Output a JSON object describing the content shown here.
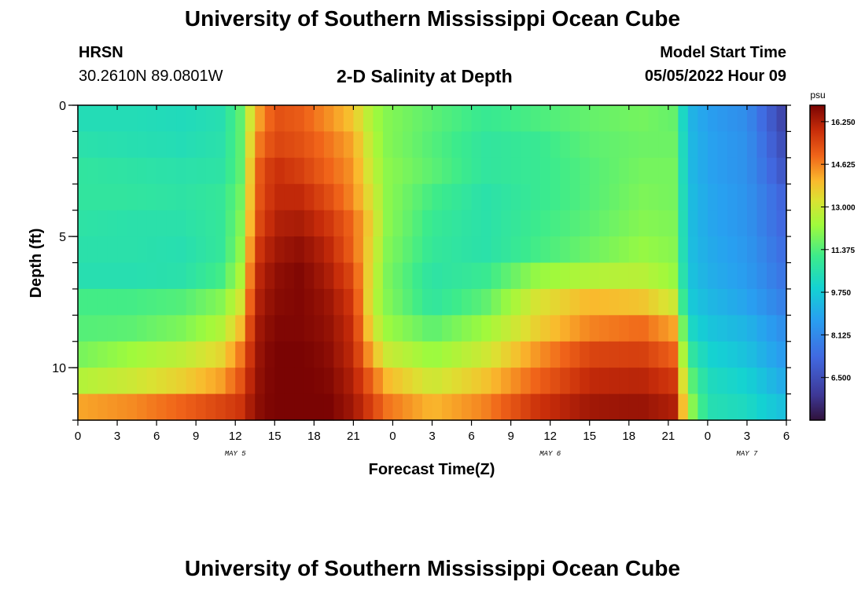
{
  "header": {
    "title": "University of Southern Mississippi Ocean Cube",
    "station": "HRSN",
    "coordinates": "30.2610N  89.0801W",
    "subtitle": "2-D Salinity at Depth",
    "model_start_label": "Model Start Time",
    "model_start_value": "05/05/2022 Hour 09"
  },
  "footer": {
    "title": "University of Southern Mississippi Ocean Cube"
  },
  "chart_data": {
    "type": "heatmap",
    "title": "2-D Salinity at Depth",
    "xlabel": "Forecast Time(Z)",
    "ylabel": "Depth (ft)",
    "x_range_hours": [
      0,
      54
    ],
    "x_ticks": [
      {
        "h": 0,
        "label": "0"
      },
      {
        "h": 3,
        "label": "3"
      },
      {
        "h": 6,
        "label": "6"
      },
      {
        "h": 9,
        "label": "9"
      },
      {
        "h": 12,
        "label": "12"
      },
      {
        "h": 15,
        "label": "15"
      },
      {
        "h": 18,
        "label": "18"
      },
      {
        "h": 21,
        "label": "21"
      },
      {
        "h": 24,
        "label": "0"
      },
      {
        "h": 27,
        "label": "3"
      },
      {
        "h": 30,
        "label": "6"
      },
      {
        "h": 33,
        "label": "9"
      },
      {
        "h": 36,
        "label": "12"
      },
      {
        "h": 39,
        "label": "15"
      },
      {
        "h": 42,
        "label": "18"
      },
      {
        "h": 45,
        "label": "21"
      },
      {
        "h": 48,
        "label": "0"
      },
      {
        "h": 51,
        "label": "3"
      },
      {
        "h": 54,
        "label": "6"
      }
    ],
    "date_labels": [
      {
        "h": 12,
        "label": "MAY 5"
      },
      {
        "h": 36,
        "label": "MAY 6"
      },
      {
        "h": 51,
        "label": "MAY 7"
      }
    ],
    "y_range_ft": [
      0,
      12
    ],
    "y_ticks": [
      {
        "v": 0,
        "label": "0"
      },
      {
        "v": 5,
        "label": "5"
      },
      {
        "v": 10,
        "label": "10"
      }
    ],
    "colorbar": {
      "unit": "psu",
      "min": 4.875,
      "max": 16.875,
      "ticks": [
        "16.250",
        "14.625",
        "13.000",
        "11.375",
        "9.750",
        "8.125",
        "6.500"
      ],
      "tick_values": [
        16.25,
        14.625,
        13.0,
        11.375,
        9.75,
        8.125,
        6.5
      ]
    },
    "depth_levels": 12,
    "time_points_hours": [
      0,
      4,
      8,
      11,
      12.5,
      13.5,
      15,
      17,
      19,
      21,
      22.5,
      23.5,
      27,
      31,
      35,
      39,
      43,
      45.5,
      46.5,
      48,
      51,
      54
    ],
    "salinity": [
      [
        10.4,
        10.4,
        10.3,
        10.5,
        11.6,
        14.0,
        15.3,
        15.1,
        14.5,
        13.8,
        12.4,
        12.0,
        11.5,
        11.0,
        11.3,
        11.6,
        11.8,
        11.6,
        9.3,
        8.7,
        8.2,
        6.0
      ],
      [
        10.6,
        10.5,
        10.4,
        10.6,
        11.6,
        14.5,
        15.5,
        15.3,
        14.8,
        14.2,
        12.6,
        12.0,
        11.4,
        10.8,
        11.0,
        11.5,
        11.7,
        11.7,
        9.4,
        8.8,
        8.3,
        6.3
      ],
      [
        10.8,
        10.7,
        10.6,
        10.7,
        11.6,
        14.9,
        15.9,
        15.6,
        15.0,
        14.4,
        12.8,
        12.1,
        11.5,
        10.8,
        11.0,
        11.4,
        11.8,
        11.8,
        9.4,
        8.8,
        8.3,
        6.6
      ],
      [
        10.8,
        10.8,
        10.7,
        10.9,
        11.8,
        15.0,
        16.0,
        16.0,
        15.4,
        14.5,
        13.1,
        12.1,
        11.2,
        10.6,
        11.0,
        11.4,
        11.9,
        11.8,
        9.5,
        8.9,
        8.4,
        7.0
      ],
      [
        10.7,
        10.6,
        10.6,
        10.9,
        12.0,
        15.2,
        16.2,
        16.3,
        15.8,
        14.9,
        13.4,
        12.1,
        11.0,
        10.6,
        11.1,
        11.5,
        12.0,
        11.9,
        9.5,
        8.9,
        8.4,
        7.1
      ],
      [
        10.6,
        10.6,
        10.5,
        10.9,
        12.2,
        15.6,
        16.4,
        16.6,
        16.1,
        15.0,
        13.2,
        12.0,
        10.9,
        10.6,
        11.2,
        11.7,
        12.2,
        12.0,
        9.5,
        9.0,
        8.5,
        7.3
      ],
      [
        10.5,
        10.5,
        10.6,
        11.2,
        12.6,
        15.9,
        16.6,
        16.8,
        16.3,
        15.4,
        13.0,
        11.9,
        10.7,
        11.0,
        12.2,
        12.6,
        12.7,
        12.2,
        9.6,
        9.1,
        8.6,
        7.5
      ],
      [
        11.2,
        11.2,
        11.4,
        12.0,
        13.2,
        16.1,
        16.7,
        16.8,
        16.5,
        15.7,
        12.8,
        12.0,
        10.8,
        11.5,
        13.2,
        14.0,
        13.8,
        13.0,
        9.8,
        9.3,
        8.8,
        7.8
      ],
      [
        11.4,
        11.5,
        11.9,
        12.6,
        14.0,
        16.3,
        16.8,
        16.8,
        16.6,
        15.9,
        13.2,
        12.3,
        11.5,
        12.3,
        13.6,
        14.6,
        14.9,
        14.2,
        10.3,
        9.6,
        9.2,
        8.2
      ],
      [
        11.8,
        12.3,
        12.8,
        13.5,
        14.8,
        16.4,
        16.9,
        16.9,
        16.7,
        16.0,
        14.0,
        13.0,
        12.2,
        13.0,
        14.4,
        15.5,
        15.6,
        15.0,
        11.0,
        10.0,
        9.5,
        8.5
      ],
      [
        12.6,
        13.0,
        13.6,
        14.3,
        15.3,
        16.5,
        16.9,
        16.9,
        16.8,
        16.2,
        14.9,
        14.0,
        13.0,
        13.8,
        15.0,
        16.0,
        16.1,
        15.7,
        11.8,
        10.3,
        9.9,
        8.9
      ],
      [
        14.2,
        14.5,
        15.0,
        15.5,
        15.8,
        16.6,
        16.9,
        16.9,
        16.9,
        16.4,
        15.5,
        14.8,
        14.0,
        14.6,
        15.8,
        16.4,
        16.5,
        16.2,
        12.5,
        10.5,
        10.2,
        9.4
      ]
    ]
  }
}
